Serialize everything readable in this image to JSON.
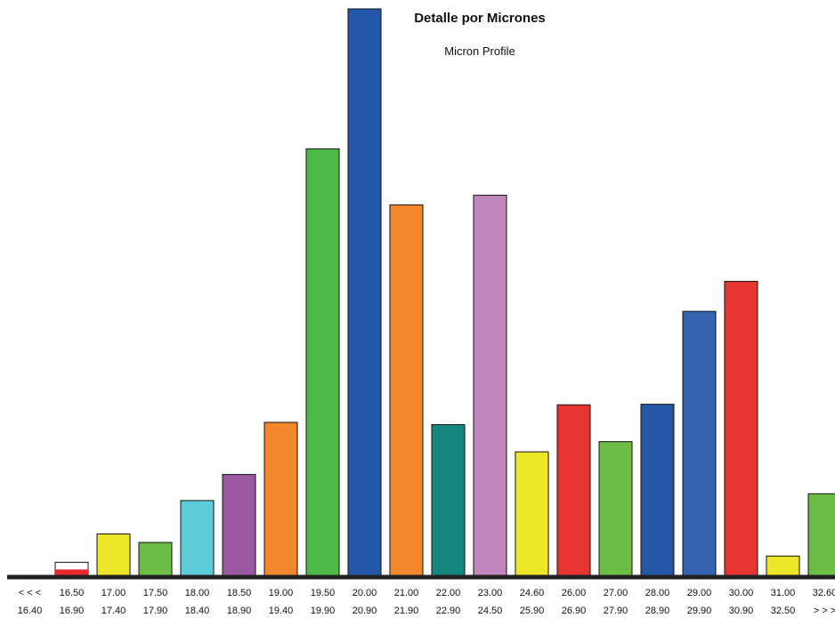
{
  "chart_data": {
    "type": "bar",
    "title": "Detalle por Micrones",
    "subtitle": "Micron Profile",
    "xlabel": "",
    "ylabel": "",
    "ylim": [
      0,
      100
    ],
    "grid": false,
    "legend": "none",
    "categories": [
      {
        "from": "< < <",
        "to": "16.40"
      },
      {
        "from": "16.50",
        "to": "16.90"
      },
      {
        "from": "17.00",
        "to": "17.40"
      },
      {
        "from": "17.50",
        "to": "17.90"
      },
      {
        "from": "18.00",
        "to": "18.40"
      },
      {
        "from": "18.50",
        "to": "18.90"
      },
      {
        "from": "19.00",
        "to": "19.40"
      },
      {
        "from": "19.50",
        "to": "19.90"
      },
      {
        "from": "20.00",
        "to": "20.90"
      },
      {
        "from": "21.00",
        "to": "21.90"
      },
      {
        "from": "22.00",
        "to": "22.90"
      },
      {
        "from": "23.00",
        "to": "24.50"
      },
      {
        "from": "24.60",
        "to": "25.90"
      },
      {
        "from": "26.00",
        "to": "26.90"
      },
      {
        "from": "27.00",
        "to": "27.90"
      },
      {
        "from": "28.00",
        "to": "28.90"
      },
      {
        "from": "29.00",
        "to": "29.90"
      },
      {
        "from": "30.00",
        "to": "30.90"
      },
      {
        "from": "31.00",
        "to": "32.50"
      },
      {
        "from": "32.60",
        "to": "> > >"
      }
    ],
    "values": [
      0.0,
      2.3,
      7.3,
      5.8,
      13.2,
      17.8,
      27.0,
      75.3,
      100.0,
      65.4,
      26.6,
      67.1,
      21.8,
      30.1,
      23.6,
      30.2,
      46.6,
      51.9,
      3.4,
      14.4
    ],
    "colors": [
      "#ffffff",
      "#e8282c",
      "#ede72a",
      "#6bbd45",
      "#5ecbd9",
      "#9c59a3",
      "#f3872b",
      "#4fb947",
      "#2457a8",
      "#f3872b",
      "#16877f",
      "#c186bd",
      "#ede72a",
      "#e83430",
      "#6bbd45",
      "#2457a8",
      "#3464b0",
      "#e83430",
      "#ede72a",
      "#6bbd45"
    ],
    "partial_fill": {
      "index": 1,
      "fraction": 0.45
    }
  }
}
